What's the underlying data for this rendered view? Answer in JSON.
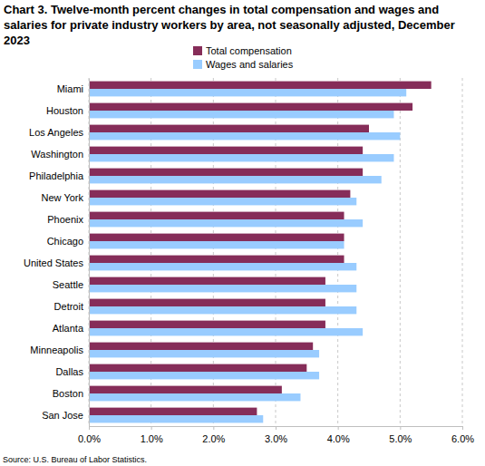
{
  "chart_data": {
    "type": "bar",
    "orientation": "horizontal",
    "title": "Chart 3. Twelve-month percent changes in total compensation and wages and salaries for private industry workers by area, not seasonally adjusted, December 2023",
    "annotations": [
      "Source: U.S. Bureau of Labor Statistics."
    ],
    "categories": [
      "Miami",
      "Houston",
      "Los Angeles",
      "Washington",
      "Philadelphia",
      "New York",
      "Phoenix",
      "Chicago",
      "United States",
      "Seattle",
      "Detroit",
      "Atlanta",
      "Minneapolis",
      "Dallas",
      "Boston",
      "San Jose"
    ],
    "series": [
      {
        "name": "Total compensation",
        "color": "#862d59",
        "values": [
          5.5,
          5.2,
          4.5,
          4.4,
          4.4,
          4.2,
          4.1,
          4.1,
          4.1,
          3.8,
          3.8,
          3.8,
          3.6,
          3.5,
          3.1,
          2.7
        ]
      },
      {
        "name": "Wages and salaries",
        "color": "#99ccff",
        "values": [
          5.1,
          4.9,
          5.0,
          4.9,
          4.7,
          4.3,
          4.4,
          4.1,
          4.3,
          4.3,
          4.3,
          4.4,
          3.7,
          3.7,
          3.4,
          2.8
        ]
      }
    ],
    "xlim": [
      0,
      6
    ],
    "xticks": [
      {
        "value": 0,
        "label": "0.0%"
      },
      {
        "value": 1,
        "label": "1.0%"
      },
      {
        "value": 2,
        "label": "2.0%"
      },
      {
        "value": 3,
        "label": "3.0%"
      },
      {
        "value": 4,
        "label": "4.0%"
      },
      {
        "value": 5,
        "label": "5.0%"
      },
      {
        "value": 6,
        "label": "6.0%"
      }
    ],
    "grid": true,
    "legend": "top"
  }
}
